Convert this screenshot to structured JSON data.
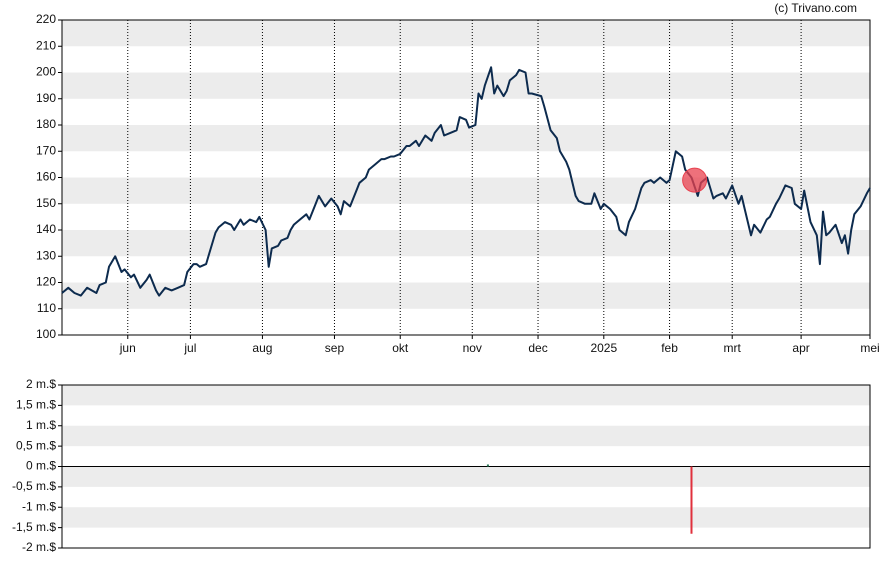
{
  "source": "(c) Trivano.com",
  "chart_data": [
    {
      "type": "line",
      "xlim": [
        0,
        258
      ],
      "xticks": [
        {
          "value": 21,
          "label": "jun"
        },
        {
          "value": 41,
          "label": "jul"
        },
        {
          "value": 64,
          "label": "aug"
        },
        {
          "value": 87,
          "label": "sep"
        },
        {
          "value": 108,
          "label": "okt"
        },
        {
          "value": 131,
          "label": "nov"
        },
        {
          "value": 152,
          "label": "dec"
        },
        {
          "value": 173,
          "label": "2025"
        },
        {
          "value": 194,
          "label": "feb"
        },
        {
          "value": 214,
          "label": "mrt"
        },
        {
          "value": 236,
          "label": "apr"
        },
        {
          "value": 258,
          "label": "mei"
        }
      ],
      "ylim": [
        100,
        220
      ],
      "yticks": [
        100,
        110,
        120,
        130,
        140,
        150,
        160,
        170,
        180,
        190,
        200,
        210,
        220
      ],
      "grid": true,
      "series": [
        {
          "color": "#0d2b4e",
          "x": [
            0,
            2,
            4,
            6,
            8,
            11,
            12,
            14,
            15,
            17,
            19,
            20,
            22,
            23,
            25,
            27,
            28,
            30,
            31,
            33,
            35,
            37,
            39,
            40,
            42,
            43,
            44,
            46,
            47,
            49,
            50,
            52,
            54,
            55,
            57,
            58,
            60,
            62,
            63,
            65,
            66,
            67,
            69,
            70,
            72,
            73,
            74,
            76,
            78,
            79,
            81,
            82,
            84,
            86,
            88,
            89,
            90,
            92,
            94,
            95,
            97,
            98,
            100,
            102,
            103,
            105,
            106,
            108,
            110,
            111,
            113,
            114,
            116,
            118,
            119,
            121,
            122,
            124,
            126,
            127,
            129,
            130,
            132,
            133,
            134,
            135,
            137,
            138,
            139,
            141,
            142,
            143,
            145,
            146,
            148,
            149,
            150,
            153,
            154,
            156,
            158,
            159,
            161,
            162,
            164,
            165,
            167,
            169,
            170,
            172,
            173,
            175,
            177,
            178,
            180,
            181,
            183,
            185,
            186,
            188,
            189,
            191,
            193,
            194,
            196,
            198,
            199,
            201,
            203,
            204,
            206,
            208,
            209,
            211,
            212,
            214,
            216,
            217,
            218,
            220,
            221,
            223,
            225,
            226,
            228,
            229,
            231,
            233,
            234,
            236,
            237,
            239,
            241,
            242,
            243,
            244,
            245,
            247,
            249,
            250,
            251,
            252,
            253,
            255,
            257,
            258
          ],
          "values": [
            116,
            118,
            116,
            115,
            118,
            116,
            119,
            120,
            126,
            130,
            124,
            125,
            122,
            123,
            118,
            121,
            123,
            117,
            115,
            118,
            117,
            118,
            119,
            124,
            127,
            127,
            126,
            127,
            131,
            139,
            141,
            143,
            142,
            140,
            144,
            142,
            144,
            143,
            145,
            140,
            126,
            133,
            134,
            136,
            137,
            140,
            142,
            144,
            146,
            144,
            150,
            153,
            149,
            152,
            149,
            146,
            151,
            149,
            155,
            158,
            160,
            163,
            165,
            167,
            167,
            168,
            168,
            169,
            172,
            172,
            174,
            172,
            176,
            174,
            177,
            180,
            176,
            177,
            178,
            183,
            182,
            179,
            180,
            192,
            190,
            195,
            202,
            192,
            195,
            191,
            193,
            197,
            199,
            201,
            200,
            192,
            192,
            191,
            187,
            178,
            175,
            170,
            166,
            163,
            153,
            151,
            150,
            150,
            154,
            148,
            150,
            148,
            145,
            140,
            138,
            143,
            148,
            156,
            158,
            159,
            158,
            160,
            158,
            159,
            170,
            168,
            163,
            160,
            153,
            158,
            160,
            152,
            153,
            154,
            152,
            157,
            150,
            153,
            148,
            138,
            142,
            139,
            144,
            145,
            150,
            152,
            157,
            156,
            150,
            148,
            155,
            143,
            138,
            127,
            147,
            138,
            139,
            142,
            135,
            138,
            131,
            140,
            146,
            149,
            154,
            156
          ]
        }
      ],
      "highlight": {
        "x": 202,
        "y": 159,
        "color": "#e8414f"
      }
    },
    {
      "type": "bar",
      "xlim": [
        0,
        258
      ],
      "ylim": [
        -2000000,
        2000000
      ],
      "yticks": [
        {
          "value": -2000000,
          "label": "-2 m.$"
        },
        {
          "value": -1500000,
          "label": "-1,5 m.$"
        },
        {
          "value": -1000000,
          "label": "-1 m.$"
        },
        {
          "value": -500000,
          "label": "-0,5 m.$"
        },
        {
          "value": 0,
          "label": "0 m.$"
        },
        {
          "value": 500000,
          "label": "0,5 m.$"
        },
        {
          "value": 1000000,
          "label": "1 m.$"
        },
        {
          "value": 1500000,
          "label": "1,5 m.$"
        },
        {
          "value": 2000000,
          "label": "2 m.$"
        }
      ],
      "grid": true,
      "x": [
        136,
        201
      ],
      "values": [
        50000,
        -1650000
      ],
      "colors": [
        "#2e7d5b",
        "#e0303c"
      ]
    }
  ]
}
